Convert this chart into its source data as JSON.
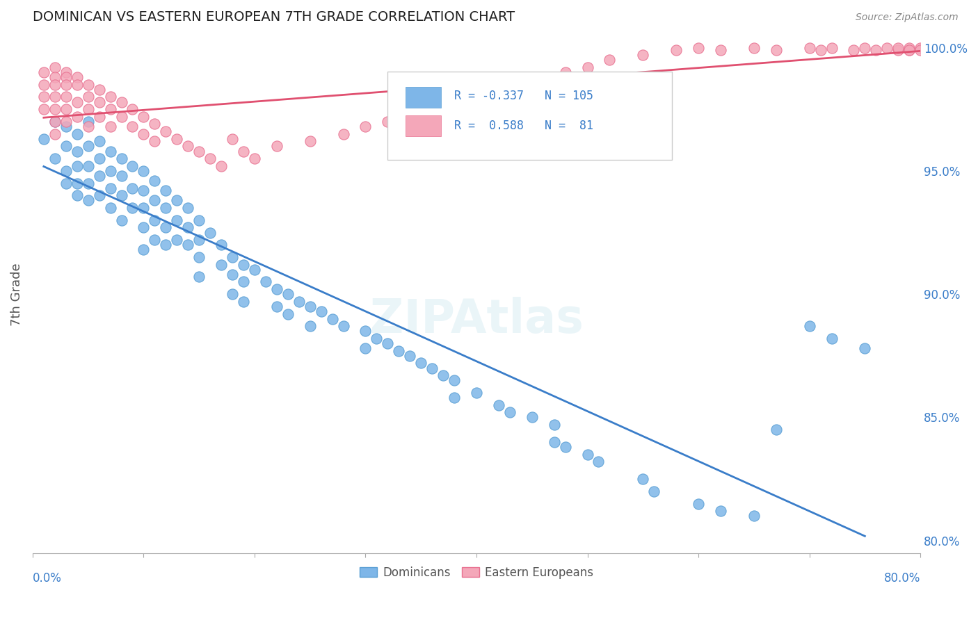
{
  "title": "DOMINICAN VS EASTERN EUROPEAN 7TH GRADE CORRELATION CHART",
  "source": "Source: ZipAtlas.com",
  "ylabel": "7th Grade",
  "ytick_labels": [
    "100.0%",
    "95.0%",
    "90.0%",
    "85.0%",
    "80.0%"
  ],
  "ytick_values": [
    1.0,
    0.95,
    0.9,
    0.85,
    0.8
  ],
  "xlim": [
    0.0,
    0.8
  ],
  "ylim": [
    0.795,
    1.005
  ],
  "blue_color": "#7EB6E8",
  "blue_edge": "#5A9FD4",
  "pink_color": "#F4A7B9",
  "pink_edge": "#E87090",
  "blue_line_color": "#3A7DC9",
  "pink_line_color": "#E05070",
  "legend_label_blue": "Dominicans",
  "legend_label_pink": "Eastern Europeans",
  "watermark": "ZIPAtlas",
  "background_color": "#ffffff",
  "grid_color": "#dddddd",
  "axis_label_color": "#3A7DC9",
  "blue_scatter_x": [
    0.01,
    0.02,
    0.02,
    0.03,
    0.03,
    0.03,
    0.03,
    0.04,
    0.04,
    0.04,
    0.04,
    0.04,
    0.05,
    0.05,
    0.05,
    0.05,
    0.05,
    0.06,
    0.06,
    0.06,
    0.06,
    0.07,
    0.07,
    0.07,
    0.07,
    0.08,
    0.08,
    0.08,
    0.08,
    0.09,
    0.09,
    0.09,
    0.1,
    0.1,
    0.1,
    0.1,
    0.1,
    0.11,
    0.11,
    0.11,
    0.11,
    0.12,
    0.12,
    0.12,
    0.12,
    0.13,
    0.13,
    0.13,
    0.14,
    0.14,
    0.14,
    0.15,
    0.15,
    0.15,
    0.15,
    0.16,
    0.17,
    0.17,
    0.18,
    0.18,
    0.18,
    0.19,
    0.19,
    0.19,
    0.2,
    0.21,
    0.22,
    0.22,
    0.23,
    0.23,
    0.24,
    0.25,
    0.25,
    0.26,
    0.27,
    0.28,
    0.3,
    0.3,
    0.31,
    0.32,
    0.33,
    0.34,
    0.35,
    0.36,
    0.37,
    0.38,
    0.38,
    0.4,
    0.42,
    0.43,
    0.45,
    0.47,
    0.47,
    0.48,
    0.5,
    0.51,
    0.55,
    0.56,
    0.6,
    0.62,
    0.65,
    0.67,
    0.7,
    0.72,
    0.75
  ],
  "blue_scatter_y": [
    0.963,
    0.97,
    0.955,
    0.968,
    0.96,
    0.95,
    0.945,
    0.965,
    0.958,
    0.952,
    0.945,
    0.94,
    0.97,
    0.96,
    0.952,
    0.945,
    0.938,
    0.962,
    0.955,
    0.948,
    0.94,
    0.958,
    0.95,
    0.943,
    0.935,
    0.955,
    0.948,
    0.94,
    0.93,
    0.952,
    0.943,
    0.935,
    0.95,
    0.942,
    0.935,
    0.927,
    0.918,
    0.946,
    0.938,
    0.93,
    0.922,
    0.942,
    0.935,
    0.927,
    0.92,
    0.938,
    0.93,
    0.922,
    0.935,
    0.927,
    0.92,
    0.93,
    0.922,
    0.915,
    0.907,
    0.925,
    0.92,
    0.912,
    0.915,
    0.908,
    0.9,
    0.912,
    0.905,
    0.897,
    0.91,
    0.905,
    0.902,
    0.895,
    0.9,
    0.892,
    0.897,
    0.895,
    0.887,
    0.893,
    0.89,
    0.887,
    0.885,
    0.878,
    0.882,
    0.88,
    0.877,
    0.875,
    0.872,
    0.87,
    0.867,
    0.865,
    0.858,
    0.86,
    0.855,
    0.852,
    0.85,
    0.847,
    0.84,
    0.838,
    0.835,
    0.832,
    0.825,
    0.82,
    0.815,
    0.812,
    0.81,
    0.845,
    0.887,
    0.882,
    0.878
  ],
  "pink_scatter_x": [
    0.01,
    0.01,
    0.01,
    0.01,
    0.02,
    0.02,
    0.02,
    0.02,
    0.02,
    0.02,
    0.02,
    0.03,
    0.03,
    0.03,
    0.03,
    0.03,
    0.03,
    0.04,
    0.04,
    0.04,
    0.04,
    0.05,
    0.05,
    0.05,
    0.05,
    0.06,
    0.06,
    0.06,
    0.07,
    0.07,
    0.07,
    0.08,
    0.08,
    0.09,
    0.09,
    0.1,
    0.1,
    0.11,
    0.11,
    0.12,
    0.13,
    0.14,
    0.15,
    0.16,
    0.17,
    0.18,
    0.19,
    0.2,
    0.22,
    0.25,
    0.28,
    0.3,
    0.32,
    0.35,
    0.38,
    0.4,
    0.42,
    0.45,
    0.48,
    0.5,
    0.52,
    0.55,
    0.58,
    0.6,
    0.62,
    0.65,
    0.67,
    0.7,
    0.71,
    0.72,
    0.74,
    0.75,
    0.76,
    0.77,
    0.78,
    0.78,
    0.79,
    0.79,
    0.79,
    0.8,
    0.8
  ],
  "pink_scatter_y": [
    0.99,
    0.985,
    0.98,
    0.975,
    0.992,
    0.988,
    0.985,
    0.98,
    0.975,
    0.97,
    0.965,
    0.99,
    0.988,
    0.985,
    0.98,
    0.975,
    0.97,
    0.988,
    0.985,
    0.978,
    0.972,
    0.985,
    0.98,
    0.975,
    0.968,
    0.983,
    0.978,
    0.972,
    0.98,
    0.975,
    0.968,
    0.978,
    0.972,
    0.975,
    0.968,
    0.972,
    0.965,
    0.969,
    0.962,
    0.966,
    0.963,
    0.96,
    0.958,
    0.955,
    0.952,
    0.963,
    0.958,
    0.955,
    0.96,
    0.962,
    0.965,
    0.968,
    0.97,
    0.975,
    0.978,
    0.98,
    0.983,
    0.988,
    0.99,
    0.992,
    0.995,
    0.997,
    0.999,
    1.0,
    0.999,
    1.0,
    0.999,
    1.0,
    0.999,
    1.0,
    0.999,
    1.0,
    0.999,
    1.0,
    0.999,
    1.0,
    0.999,
    1.0,
    0.999,
    1.0,
    0.999
  ]
}
